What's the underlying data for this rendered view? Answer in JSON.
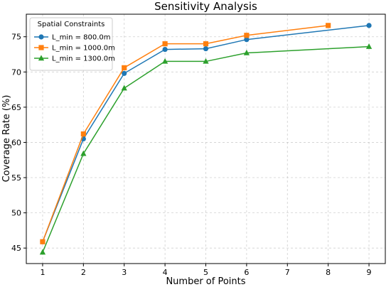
{
  "chart_data": {
    "type": "line",
    "title": "Sensitivity Analysis",
    "xlabel": "Number of Points",
    "ylabel": "Coverage Rate (%)",
    "xlim": [
      0.6,
      9.4
    ],
    "ylim": [
      42.8,
      78.2
    ],
    "xticks": [
      1,
      2,
      3,
      4,
      5,
      6,
      7,
      8,
      9
    ],
    "yticks": [
      45,
      50,
      55,
      60,
      65,
      70,
      75
    ],
    "grid": true,
    "legend": {
      "title": "Spatial Constraints",
      "placement": "upper-left"
    },
    "series": [
      {
        "name": "L_min = 800.0m",
        "color": "#1f77b4",
        "marker": "circle",
        "x": [
          1,
          2,
          3,
          4,
          5,
          6,
          9
        ],
        "y": [
          45.9,
          60.5,
          69.8,
          73.2,
          73.3,
          74.6,
          76.6
        ]
      },
      {
        "name": "L_min = 1000.0m",
        "color": "#ff7f0e",
        "marker": "square",
        "x": [
          1,
          2,
          3,
          4,
          5,
          6,
          8
        ],
        "y": [
          45.9,
          61.2,
          70.6,
          74.0,
          74.0,
          75.2,
          76.6
        ]
      },
      {
        "name": "L_min = 1300.0m",
        "color": "#2ca02c",
        "marker": "triangle",
        "x": [
          1,
          2,
          3,
          4,
          5,
          6,
          9
        ],
        "y": [
          44.4,
          58.4,
          67.7,
          71.5,
          71.5,
          72.7,
          73.6
        ]
      }
    ]
  }
}
